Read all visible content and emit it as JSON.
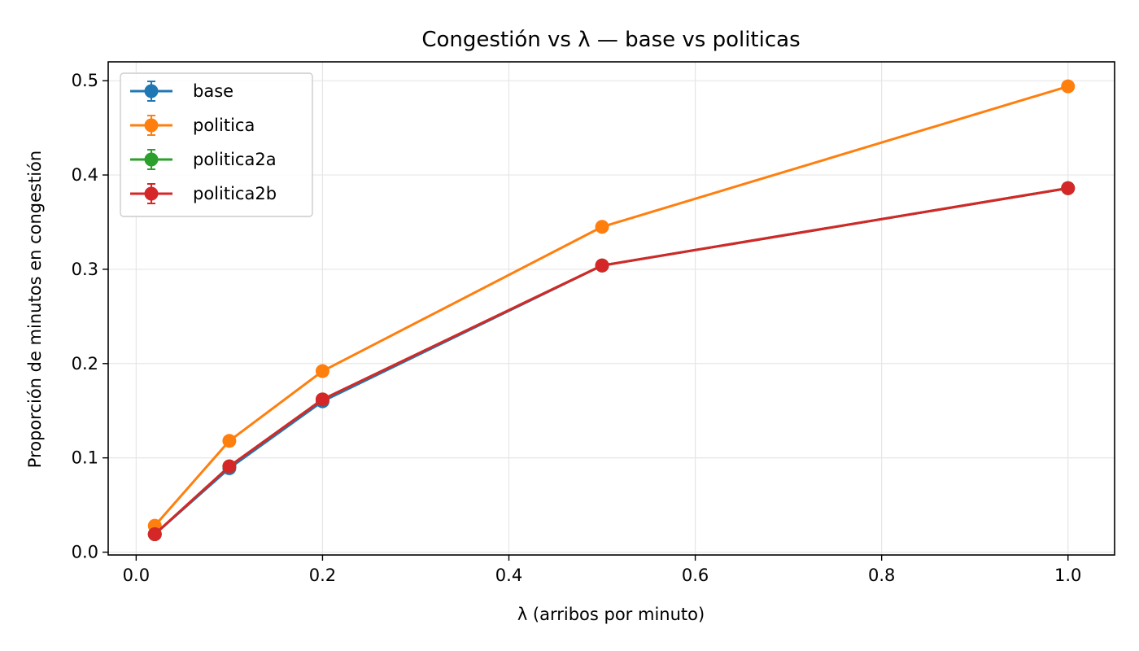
{
  "chart_data": {
    "type": "line",
    "title": "Congestión vs λ — base vs politicas",
    "xlabel": "λ (arribos por minuto)",
    "ylabel": "Proporción de minutos en congestión",
    "xlim": [
      -0.03,
      1.05
    ],
    "ylim": [
      -0.003,
      0.52
    ],
    "xticks": [
      0.0,
      0.2,
      0.4,
      0.6,
      0.8,
      1.0
    ],
    "xtick_labels": [
      "0.0",
      "0.2",
      "0.4",
      "0.6",
      "0.8",
      "1.0"
    ],
    "yticks": [
      0.0,
      0.1,
      0.2,
      0.3,
      0.4,
      0.5
    ],
    "ytick_labels": [
      "0.0",
      "0.1",
      "0.2",
      "0.3",
      "0.4",
      "0.5"
    ],
    "grid": true,
    "legend_position": "upper-left",
    "x": [
      0.02,
      0.1,
      0.2,
      0.5,
      1.0
    ],
    "series": [
      {
        "name": "base",
        "color": "#1f77b4",
        "values": [
          0.019,
          0.089,
          0.16,
          0.304,
          0.386
        ]
      },
      {
        "name": "politica",
        "color": "#ff7f0e",
        "values": [
          0.028,
          0.118,
          0.192,
          0.345,
          0.494
        ]
      },
      {
        "name": "politica2a",
        "color": "#2ca02c",
        "values": [
          0.019,
          0.091,
          0.162,
          0.304,
          0.386
        ]
      },
      {
        "name": "politica2b",
        "color": "#d62728",
        "values": [
          0.019,
          0.091,
          0.162,
          0.304,
          0.386
        ]
      }
    ]
  }
}
